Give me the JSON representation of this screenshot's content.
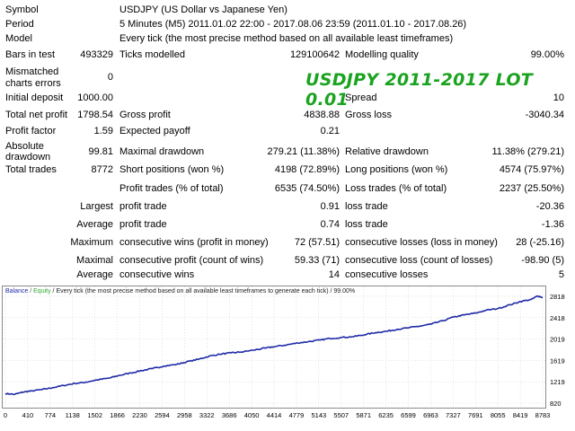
{
  "report": {
    "symbol": {
      "label": "Symbol",
      "value": "USDJPY (US Dollar vs Japanese Yen)"
    },
    "period": {
      "label": "Period",
      "value": "5 Minutes (M5) 2011.01.02 22:00 - 2017.08.06 23:59 (2011.01.10 - 2017.08.26)"
    },
    "model": {
      "label": "Model",
      "value": "Every tick (the most precise method based on all available least timeframes)"
    },
    "bars_in_test": {
      "label": "Bars in test",
      "value": "493329"
    },
    "ticks_modelled": {
      "label": "Ticks modelled",
      "value": "129100642"
    },
    "modelling_quality": {
      "label": "Modelling quality",
      "value": "99.00%"
    },
    "mismatched_errors": {
      "label_line1": "Mismatched",
      "label_line2": "charts errors",
      "value": "0"
    },
    "initial_deposit": {
      "label": "Initial deposit",
      "value": "1000.00"
    },
    "spread": {
      "label": "Spread",
      "value": "10"
    },
    "total_net_profit": {
      "label": "Total net profit",
      "value": "1798.54"
    },
    "gross_profit": {
      "label": "Gross profit",
      "value": "4838.88"
    },
    "gross_loss": {
      "label": "Gross loss",
      "value": "-3040.34"
    },
    "profit_factor": {
      "label": "Profit factor",
      "value": "1.59"
    },
    "expected_payoff": {
      "label": "Expected payoff",
      "value": "0.21"
    },
    "absolute_drawdown": {
      "label_line1": "Absolute",
      "label_line2": "drawdown",
      "value": "99.81"
    },
    "maximal_drawdown": {
      "label": "Maximal drawdown",
      "value": "279.21 (11.38%)"
    },
    "relative_drawdown": {
      "label": "Relative drawdown",
      "value": "11.38% (279.21)"
    },
    "total_trades": {
      "label": "Total trades",
      "value": "8772"
    },
    "short_positions": {
      "label": "Short positions (won %)",
      "value": "4198 (72.89%)"
    },
    "long_positions": {
      "label": "Long positions (won %)",
      "value": "4574 (75.97%)"
    },
    "profit_trades": {
      "label": "Profit trades (% of total)",
      "value": "6535 (74.50%)"
    },
    "loss_trades": {
      "label": "Loss trades (% of total)",
      "value": "2237 (25.50%)"
    },
    "largest": {
      "label": "Largest",
      "profit_label": "profit trade",
      "profit_value": "0.91",
      "loss_label": "loss trade",
      "loss_value": "-20.36"
    },
    "average": {
      "label": "Average",
      "profit_label": "profit trade",
      "profit_value": "0.74",
      "loss_label": "loss trade",
      "loss_value": "-1.36"
    },
    "maximum": {
      "label": "Maximum",
      "wins_label": "consecutive wins (profit in money)",
      "wins_value": "72 (57.51)",
      "losses_label": "consecutive losses (loss in money)",
      "losses_value": "28 (-25.16)"
    },
    "maximal": {
      "label": "Maximal",
      "profit_label": "consecutive profit (count of wins)",
      "profit_value": "59.33 (71)",
      "loss_label": "consecutive loss (count of losses)",
      "loss_value": "-98.90 (5)"
    },
    "average_consecutive": {
      "label": "Average",
      "wins_label": "consecutive wins",
      "wins_value": "14",
      "losses_label": "consecutive losses",
      "losses_value": "5"
    }
  },
  "overlay_title": "USDJPY 2011-2017 LOT 0.01",
  "colors": {
    "balance": "#1f2aa8",
    "equity": "#2ea82e",
    "grid": "#c8c8c8",
    "overlay": "#19a31f"
  },
  "chart_data": {
    "type": "line",
    "legend": {
      "balance": "Balance",
      "sep1": " / ",
      "equity": "Equity",
      "rest": " / Every tick (the most precise method based on all available least timeframes to generate each tick) / 99.00%"
    },
    "x_ticks": [
      "0",
      "410",
      "774",
      "1138",
      "1502",
      "1866",
      "2230",
      "2594",
      "2958",
      "3322",
      "3686",
      "4050",
      "4414",
      "4779",
      "5143",
      "5507",
      "5871",
      "6235",
      "6599",
      "6963",
      "7327",
      "7691",
      "8055",
      "8419",
      "8783"
    ],
    "y_ticks": [
      "2818",
      "2418",
      "2019",
      "1619",
      "1219",
      "820"
    ],
    "xlim": [
      0,
      8783
    ],
    "ylim": [
      820,
      2818
    ],
    "series": [
      {
        "name": "Balance",
        "x": [
          0,
          150,
          300,
          410,
          600,
          774,
          950,
          1138,
          1300,
          1502,
          1700,
          1866,
          2050,
          2230,
          2400,
          2594,
          2800,
          2958,
          3150,
          3322,
          3500,
          3686,
          3850,
          4050,
          4250,
          4414,
          4600,
          4779,
          4950,
          5143,
          5300,
          5507,
          5700,
          5871,
          6050,
          6235,
          6400,
          6599,
          6800,
          6963,
          7150,
          7327,
          7500,
          7691,
          7850,
          8055,
          8250,
          8419,
          8600,
          8700,
          8783
        ],
        "y": [
          1000,
          985,
          1030,
          1045,
          1075,
          1110,
          1150,
          1190,
          1210,
          1255,
          1290,
          1340,
          1385,
          1430,
          1465,
          1515,
          1545,
          1590,
          1640,
          1695,
          1735,
          1760,
          1775,
          1810,
          1850,
          1880,
          1910,
          1945,
          1970,
          2000,
          2030,
          2050,
          2065,
          2100,
          2140,
          2165,
          2200,
          2230,
          2265,
          2300,
          2360,
          2430,
          2470,
          2505,
          2555,
          2590,
          2660,
          2720,
          2760,
          2825,
          2798
        ]
      }
    ]
  }
}
